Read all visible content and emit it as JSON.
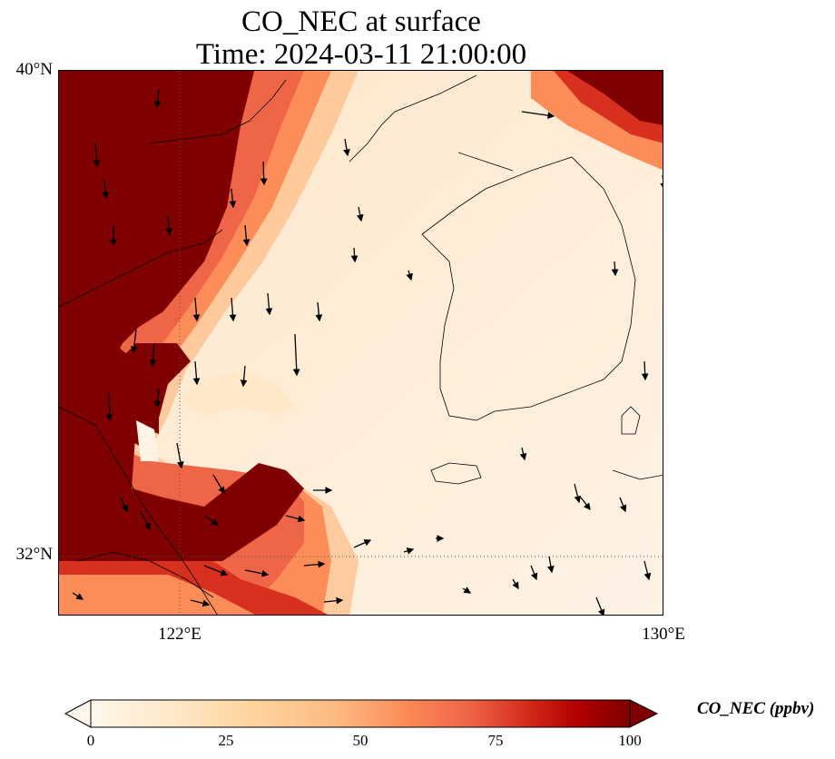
{
  "title": {
    "line1": "CO_NEC at surface",
    "line2": "Time: 2024-03-11 21:00:00"
  },
  "axes": {
    "lat_labels": [
      "40°N",
      "32°N"
    ],
    "lon_labels": [
      "122°E",
      "130°E"
    ],
    "extent": {
      "lon_min": 120,
      "lon_max": 130,
      "lat_min": 31,
      "lat_max": 40
    }
  },
  "colorbar": {
    "label": "CO_NEC (ppbv)",
    "ticks": [
      "0",
      "25",
      "50",
      "75",
      "100"
    ],
    "min": 0,
    "max": 100,
    "colormap": [
      "#fff7ec",
      "#fee8c8",
      "#fdd49e",
      "#fdbb84",
      "#fc8d59",
      "#ef6548",
      "#d7301f",
      "#b30000",
      "#7f0000"
    ],
    "extend": "both"
  },
  "colors": {
    "high": "#7f0000",
    "low": "#fff3e6",
    "coast": "#000000"
  }
}
